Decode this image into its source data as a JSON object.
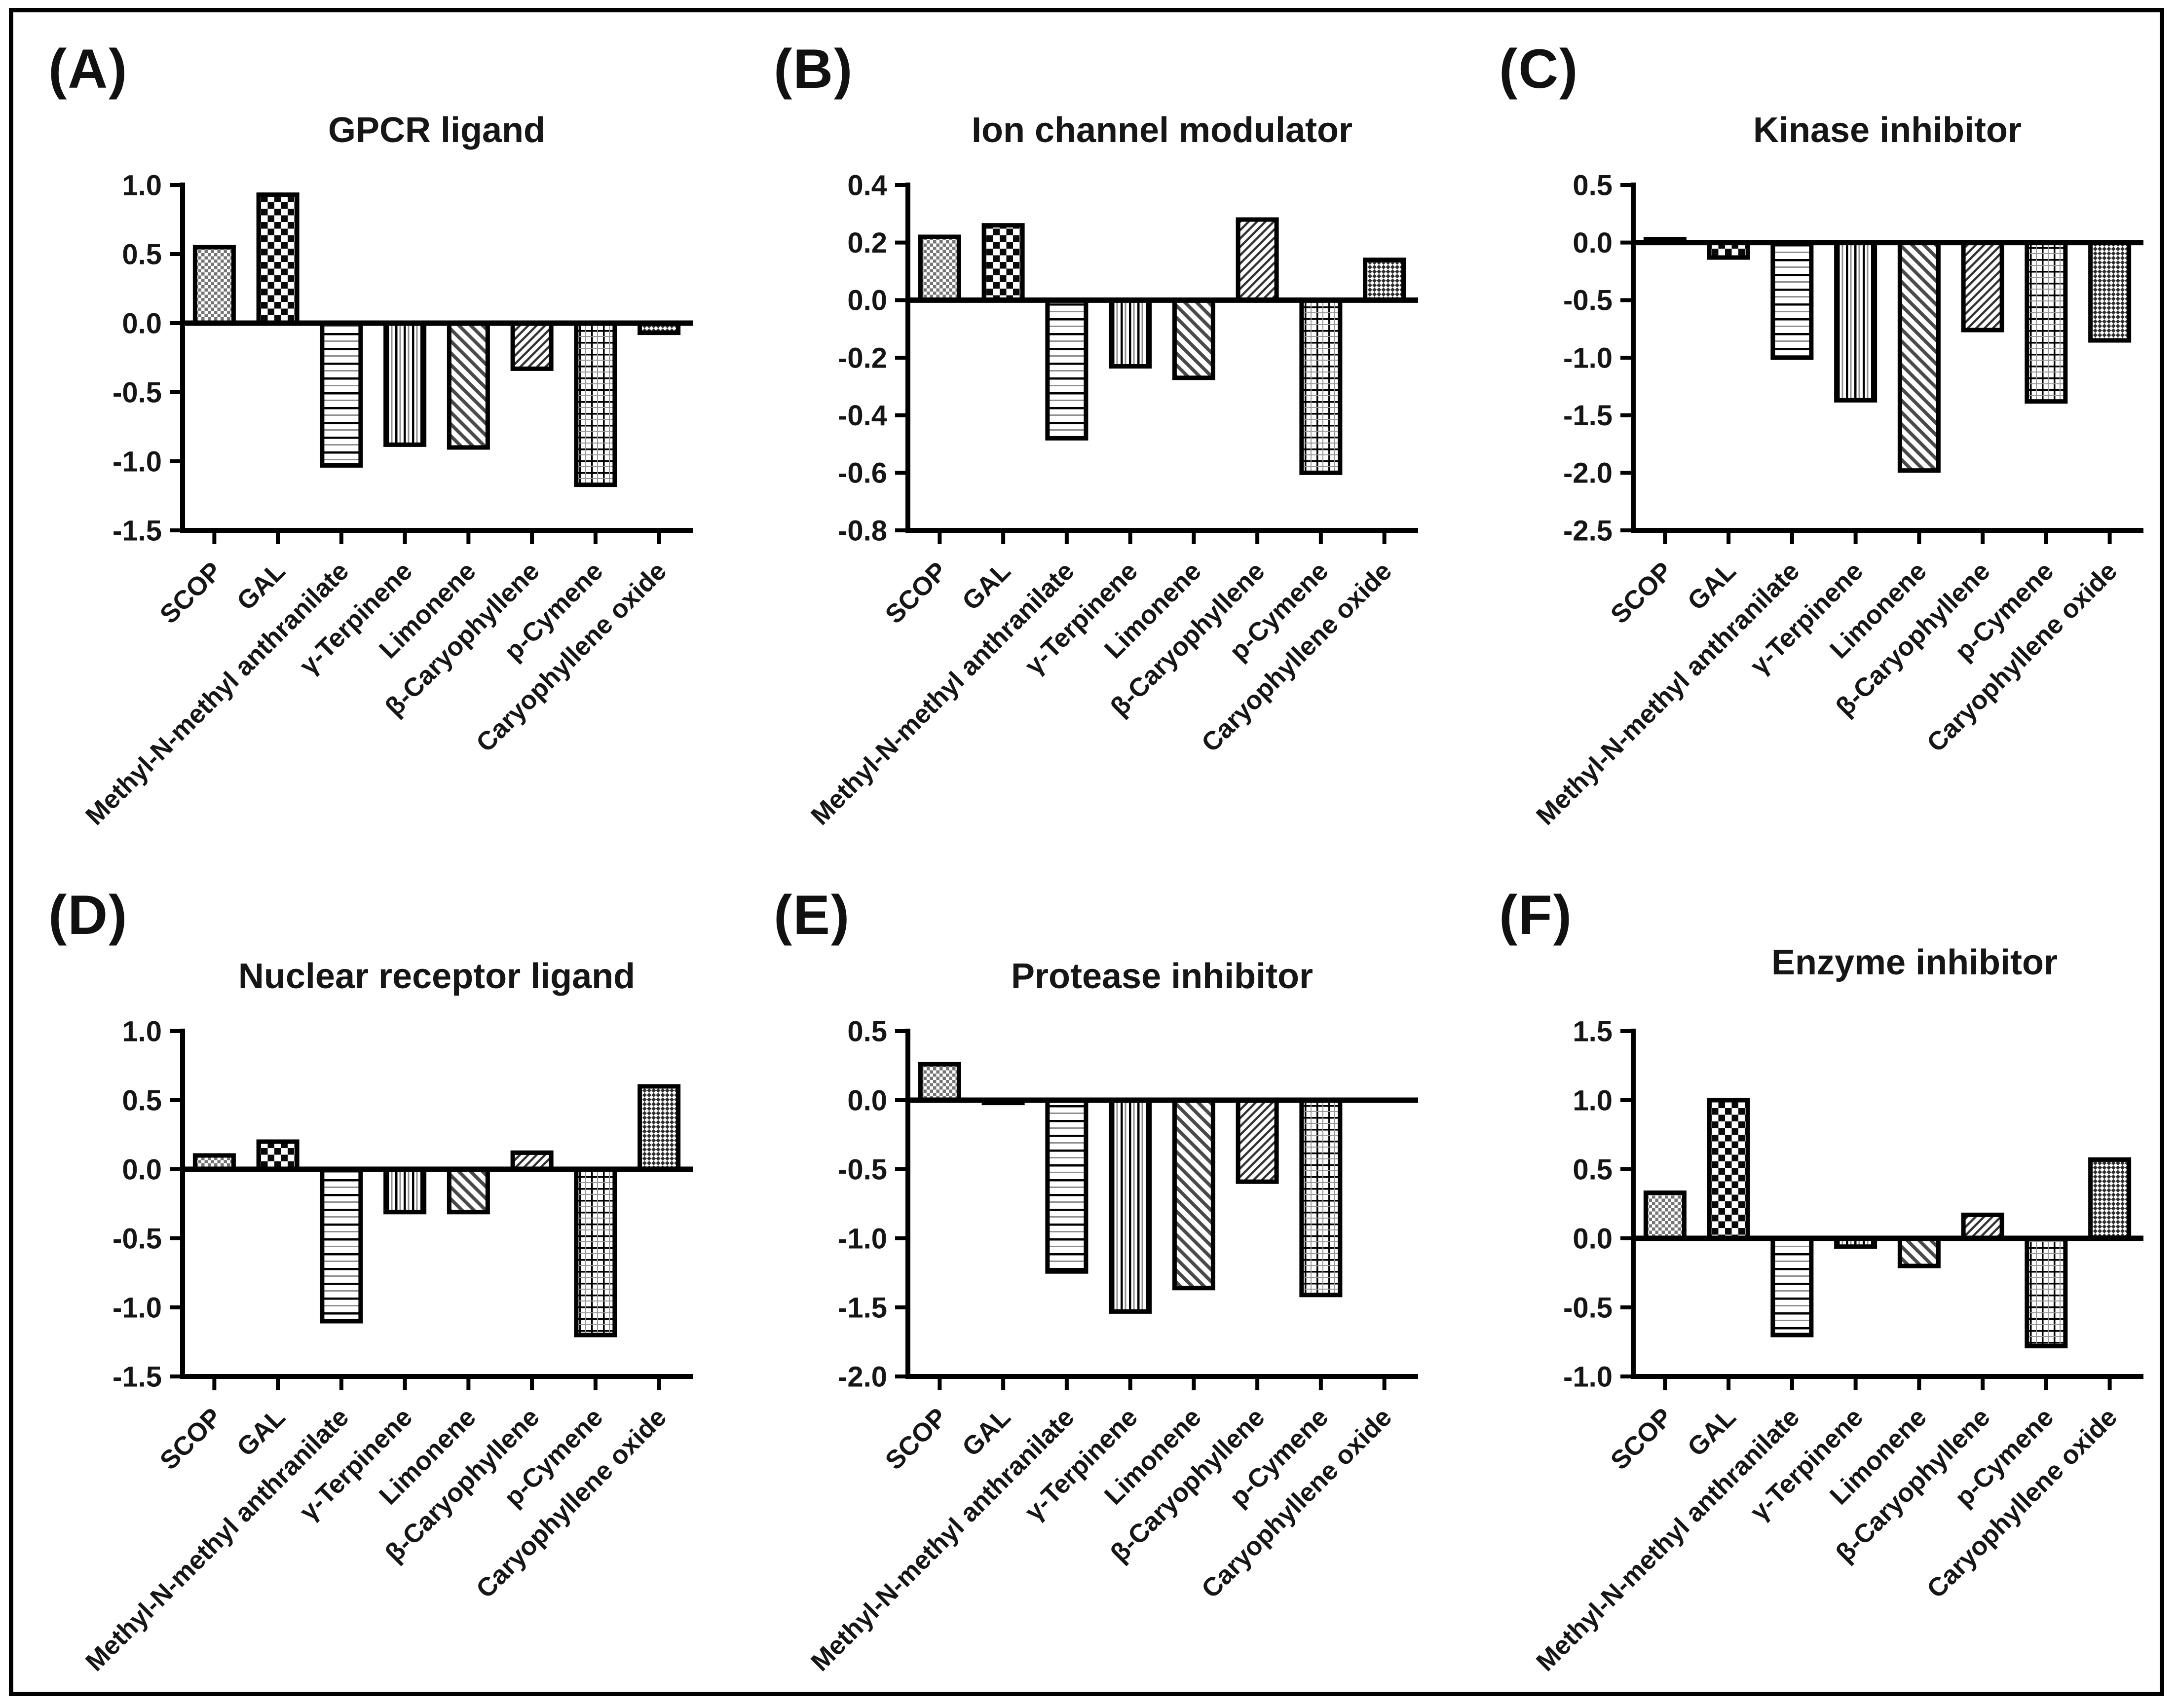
{
  "page": {
    "background": "#ffffff",
    "border_color": "#000000",
    "ink_color": "#000000"
  },
  "bar_patterns": [
    {
      "category": "SCOP",
      "pattern": "fine-checker"
    },
    {
      "category": "GAL",
      "pattern": "checkerboard"
    },
    {
      "category": "Methyl-N-methyl anthranilate",
      "pattern": "horizontal-lines"
    },
    {
      "category": "γ-Terpinene",
      "pattern": "vertical-lines"
    },
    {
      "category": "Limonene",
      "pattern": "diagonal-up"
    },
    {
      "category": "β-Caryophyllene",
      "pattern": "diagonal-down-fine"
    },
    {
      "category": "p-Cymene",
      "pattern": "grid"
    },
    {
      "category": "Caryophyllene oxide",
      "pattern": "diagonal-checker"
    }
  ],
  "chart_data": [
    {
      "id": "A",
      "panel_label": "(A)",
      "type": "bar",
      "title": "GPCR ligand",
      "categories": [
        "SCOP",
        "GAL",
        "Methyl-N-methyl anthranilate",
        "γ-Terpinene",
        "Limonene",
        "β-Caryophyllene",
        "p-Cymene",
        "Caryophyllene oxide"
      ],
      "values": [
        0.55,
        0.93,
        -1.03,
        -0.88,
        -0.9,
        -0.33,
        -1.17,
        -0.07
      ],
      "ylim": [
        -1.5,
        1.0
      ],
      "ytick_labels": [
        "1.0",
        "0.5",
        "0.0",
        "-0.5",
        "-1.0",
        "-1.5"
      ],
      "grid": false,
      "legend": "none",
      "xlabel": "",
      "ylabel": ""
    },
    {
      "id": "B",
      "panel_label": "(B)",
      "type": "bar",
      "title": "Ion channel modulator",
      "categories": [
        "SCOP",
        "GAL",
        "Methyl-N-methyl anthranilate",
        "γ-Terpinene",
        "Limonene",
        "β-Caryophyllene",
        "p-Cymene",
        "Caryophyllene oxide"
      ],
      "values": [
        0.22,
        0.26,
        -0.48,
        -0.23,
        -0.27,
        0.28,
        -0.6,
        0.14
      ],
      "ylim": [
        -0.8,
        0.4
      ],
      "ytick_labels": [
        "0.4",
        "0.2",
        "0.0",
        "-0.2",
        "-0.4",
        "-0.6",
        "-0.8"
      ],
      "grid": false,
      "legend": "none",
      "xlabel": "",
      "ylabel": ""
    },
    {
      "id": "C",
      "panel_label": "(C)",
      "type": "bar",
      "title": "Kinase inhibitor",
      "categories": [
        "SCOP",
        "GAL",
        "Methyl-N-methyl anthranilate",
        "γ-Terpinene",
        "Limonene",
        "β-Caryophyllene",
        "p-Cymene",
        "Caryophyllene oxide"
      ],
      "values": [
        0.03,
        -0.13,
        -1.0,
        -1.37,
        -1.98,
        -0.76,
        -1.38,
        -0.85
      ],
      "ylim": [
        -2.5,
        0.5
      ],
      "ytick_labels": [
        "0.5",
        "0.0",
        "-0.5",
        "-1.0",
        "-1.5",
        "-2.0",
        "-2.5"
      ],
      "grid": false,
      "legend": "none",
      "xlabel": "",
      "ylabel": ""
    },
    {
      "id": "D",
      "panel_label": "(D)",
      "type": "bar",
      "title": "Nuclear receptor ligand",
      "categories": [
        "SCOP",
        "GAL",
        "Methyl-N-methyl anthranilate",
        "γ-Terpinene",
        "Limonene",
        "β-Caryophyllene",
        "p-Cymene",
        "Caryophyllene oxide"
      ],
      "values": [
        0.1,
        0.2,
        -1.1,
        -0.31,
        -0.31,
        0.12,
        -1.2,
        0.6
      ],
      "ylim": [
        -1.5,
        1.0
      ],
      "ytick_labels": [
        "1.0",
        "0.5",
        "0.0",
        "-0.5",
        "-1.0",
        "-1.5"
      ],
      "grid": false,
      "legend": "none",
      "xlabel": "",
      "ylabel": ""
    },
    {
      "id": "E",
      "panel_label": "(E)",
      "type": "bar",
      "title": "Protease inhibitor",
      "categories": [
        "SCOP",
        "GAL",
        "Methyl-N-methyl anthranilate",
        "γ-Terpinene",
        "Limonene",
        "β-Caryophyllene",
        "p-Cymene",
        "Caryophyllene oxide"
      ],
      "values": [
        0.26,
        -0.02,
        -1.24,
        -1.53,
        -1.36,
        -0.59,
        -1.41,
        null
      ],
      "ylim": [
        -2.0,
        0.5
      ],
      "ytick_labels": [
        "0.5",
        "0.0",
        "-0.5",
        "-1.0",
        "-1.5",
        "-2.0"
      ],
      "grid": false,
      "legend": "none",
      "xlabel": "",
      "ylabel": ""
    },
    {
      "id": "F",
      "panel_label": "(F)",
      "type": "bar",
      "title": "Enzyme inhibitor",
      "categories": [
        "SCOP",
        "GAL",
        "Methyl-N-methyl anthranilate",
        "γ-Terpinene",
        "Limonene",
        "β-Caryophyllene",
        "p-Cymene",
        "Caryophyllene oxide"
      ],
      "values": [
        0.33,
        1.0,
        -0.7,
        -0.06,
        -0.2,
        0.17,
        -0.78,
        0.57
      ],
      "ylim": [
        -1.0,
        1.5
      ],
      "ytick_labels": [
        "1.5",
        "1.0",
        "0.5",
        "0.0",
        "-0.5",
        "-1.0"
      ],
      "grid": false,
      "legend": "none",
      "xlabel": "",
      "ylabel": ""
    }
  ]
}
